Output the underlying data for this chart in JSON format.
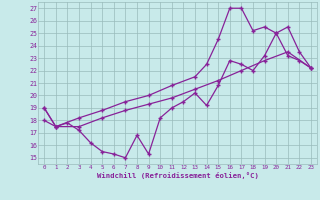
{
  "xlabel": "Windchill (Refroidissement éolien,°C)",
  "bg_color": "#c8eaea",
  "line_color": "#882299",
  "grid_color": "#99bbbb",
  "xlim": [
    -0.5,
    23.5
  ],
  "ylim": [
    14.5,
    27.5
  ],
  "xticks": [
    0,
    1,
    2,
    3,
    4,
    5,
    6,
    7,
    8,
    9,
    10,
    11,
    12,
    13,
    14,
    15,
    16,
    17,
    18,
    19,
    20,
    21,
    22,
    23
  ],
  "yticks": [
    15,
    16,
    17,
    18,
    19,
    20,
    21,
    22,
    23,
    24,
    25,
    26,
    27
  ],
  "line1_x": [
    0,
    1,
    2,
    3,
    4,
    5,
    6,
    7,
    8,
    9,
    10,
    11,
    12,
    13,
    14,
    15,
    16,
    17,
    18,
    19,
    20,
    21,
    22,
    23
  ],
  "line1_y": [
    19,
    17.5,
    17.8,
    17.2,
    16.2,
    15.5,
    15.3,
    15.0,
    16.8,
    15.3,
    18.2,
    19.0,
    19.5,
    20.2,
    19.2,
    20.8,
    22.8,
    22.5,
    22.0,
    23.2,
    25.0,
    23.2,
    22.8,
    22.2
  ],
  "line2_x": [
    0,
    1,
    3,
    5,
    7,
    9,
    11,
    13,
    15,
    17,
    19,
    21,
    23
  ],
  "line2_y": [
    18,
    17.5,
    17.5,
    18.2,
    18.8,
    19.3,
    19.8,
    20.5,
    21.2,
    22.0,
    22.8,
    23.5,
    22.2
  ],
  "line3_x": [
    0,
    1,
    3,
    5,
    7,
    9,
    11,
    13,
    14,
    15,
    16,
    17,
    18,
    19,
    20,
    21,
    22,
    23
  ],
  "line3_y": [
    19,
    17.5,
    18.2,
    18.8,
    19.5,
    20.0,
    20.8,
    21.5,
    22.5,
    24.5,
    27.0,
    27.0,
    25.2,
    25.5,
    25.0,
    25.5,
    23.5,
    22.2
  ]
}
